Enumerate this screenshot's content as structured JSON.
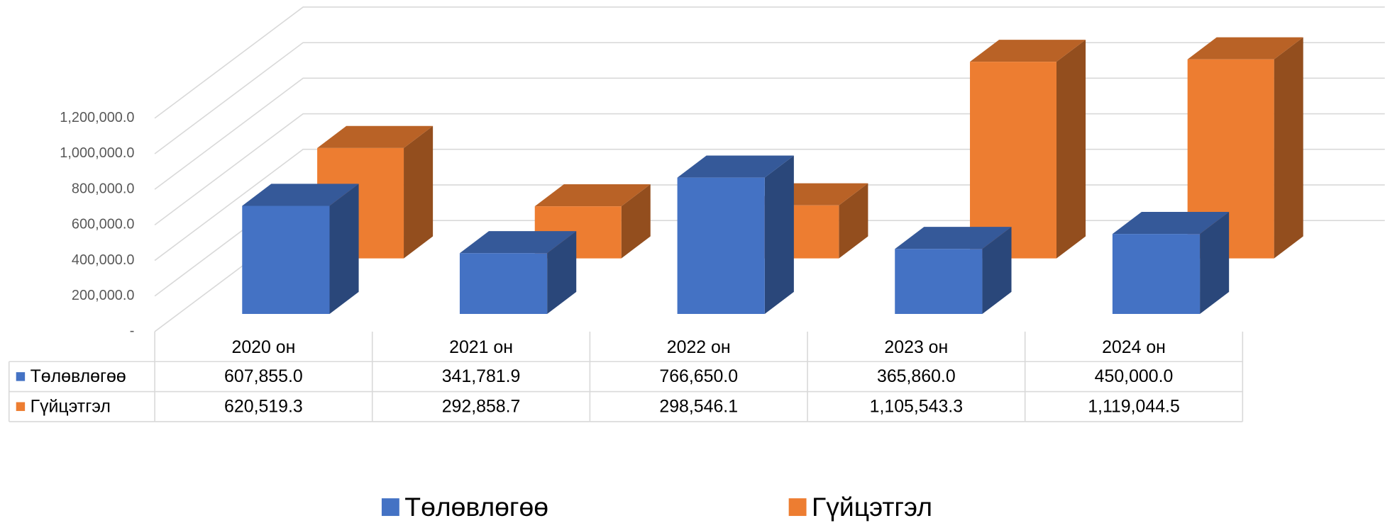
{
  "chart_data": {
    "type": "bar3d",
    "categories": [
      "2020 он",
      "2021 он",
      "2022 он",
      "2023 он",
      "2024 он"
    ],
    "series": [
      {
        "name": "Төлөвлөгөө",
        "color": "#4472c4",
        "values": [
          607855.0,
          341781.9,
          766650.0,
          365860.0,
          450000.0
        ],
        "value_labels": [
          "607,855.0",
          "341,781.9",
          "766,650.0",
          "365,860.0",
          "450,000.0"
        ]
      },
      {
        "name": "Гүйцэтгэл",
        "color": "#ed7d31",
        "values": [
          620519.3,
          292858.7,
          298546.1,
          1105543.3,
          1119044.5
        ],
        "value_labels": [
          "620,519.3",
          "292,858.7",
          "298,546.1",
          "1,105,543.3",
          "1,119,044.5"
        ]
      }
    ],
    "ylim": [
      0,
      1200000
    ],
    "yticks": [
      {
        "value": 0,
        "label": "-"
      },
      {
        "value": 200000,
        "label": "200,000.0"
      },
      {
        "value": 400000,
        "label": "400,000.0"
      },
      {
        "value": 600000,
        "label": "600,000.0"
      },
      {
        "value": 800000,
        "label": "800,000.0"
      },
      {
        "value": 1000000,
        "label": "1,000,000.0"
      },
      {
        "value": 1200000,
        "label": "1,200,000.0"
      }
    ],
    "grid": true,
    "data_table": true,
    "legend": "bottom"
  }
}
